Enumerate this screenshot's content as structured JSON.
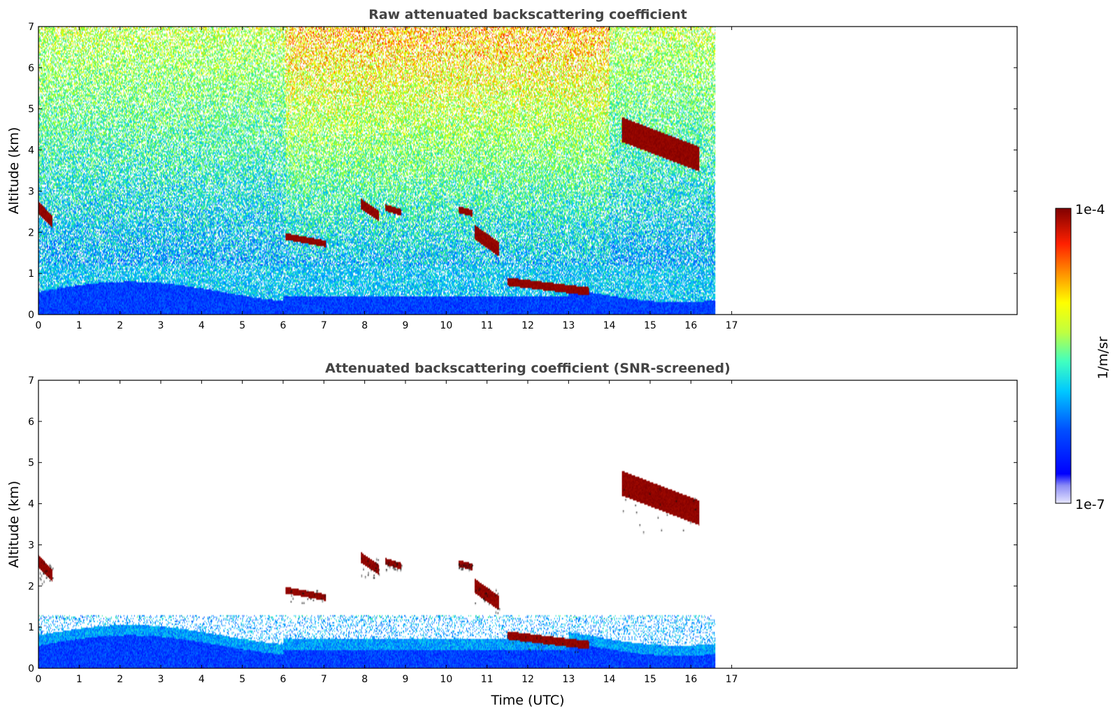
{
  "chart_data": [
    {
      "type": "heatmap",
      "title": "Raw attenuated backscattering coefficient",
      "ylabel": "Altitude (km)",
      "xlabel": "",
      "xlim": [
        0,
        24
      ],
      "ylim": [
        0,
        7
      ],
      "xticks": [
        "0",
        "1",
        "2",
        "3",
        "4",
        "5",
        "6",
        "7",
        "8",
        "9",
        "10",
        "11",
        "12",
        "13",
        "14",
        "15",
        "16",
        "17"
      ],
      "yticks": [
        "0",
        "1",
        "2",
        "3",
        "4",
        "5",
        "6",
        "7"
      ],
      "data_end_time": 16.6,
      "cloud_layers": [
        {
          "t0": 0.0,
          "t1": 0.35,
          "alt0": 2.0,
          "alt1": 2.6
        },
        {
          "t0": 6.05,
          "t1": 7.05,
          "alt0": 1.6,
          "alt1": 1.9
        },
        {
          "t0": 7.9,
          "t1": 8.35,
          "alt0": 2.2,
          "alt1": 2.7
        },
        {
          "t0": 8.5,
          "t1": 8.9,
          "alt0": 2.4,
          "alt1": 2.6
        },
        {
          "t0": 10.3,
          "t1": 10.65,
          "alt0": 2.4,
          "alt1": 2.55
        },
        {
          "t0": 10.7,
          "t1": 11.3,
          "alt0": 1.3,
          "alt1": 2.0
        },
        {
          "t0": 11.5,
          "t1": 13.5,
          "alt0": 0.4,
          "alt1": 0.8
        },
        {
          "t0": 14.3,
          "t1": 16.2,
          "alt0": 3.3,
          "alt1": 4.5
        }
      ]
    },
    {
      "type": "heatmap",
      "title": "Attenuated backscattering coefficient (SNR-screened)",
      "ylabel": "Altitude (km)",
      "xlabel": "Time (UTC)",
      "xlim": [
        0,
        24
      ],
      "ylim": [
        0,
        7
      ],
      "xticks": [
        "0",
        "1",
        "2",
        "3",
        "4",
        "5",
        "6",
        "7",
        "8",
        "9",
        "10",
        "11",
        "12",
        "13",
        "14",
        "15",
        "16",
        "17"
      ],
      "yticks": [
        "0",
        "1",
        "2",
        "3",
        "4",
        "5",
        "6",
        "7"
      ],
      "data_end_time": 16.6
    }
  ],
  "colorbar": {
    "label": "1/m/sr",
    "max_label": "1e-4",
    "min_label": "1e-7",
    "scale": "log",
    "colormap": "jet",
    "colors": [
      "#e6e6ff",
      "#0000cd",
      "#0000ff",
      "#0080ff",
      "#00ffff",
      "#80ff80",
      "#ffff00",
      "#ff8000",
      "#ff0000",
      "#800000"
    ]
  }
}
